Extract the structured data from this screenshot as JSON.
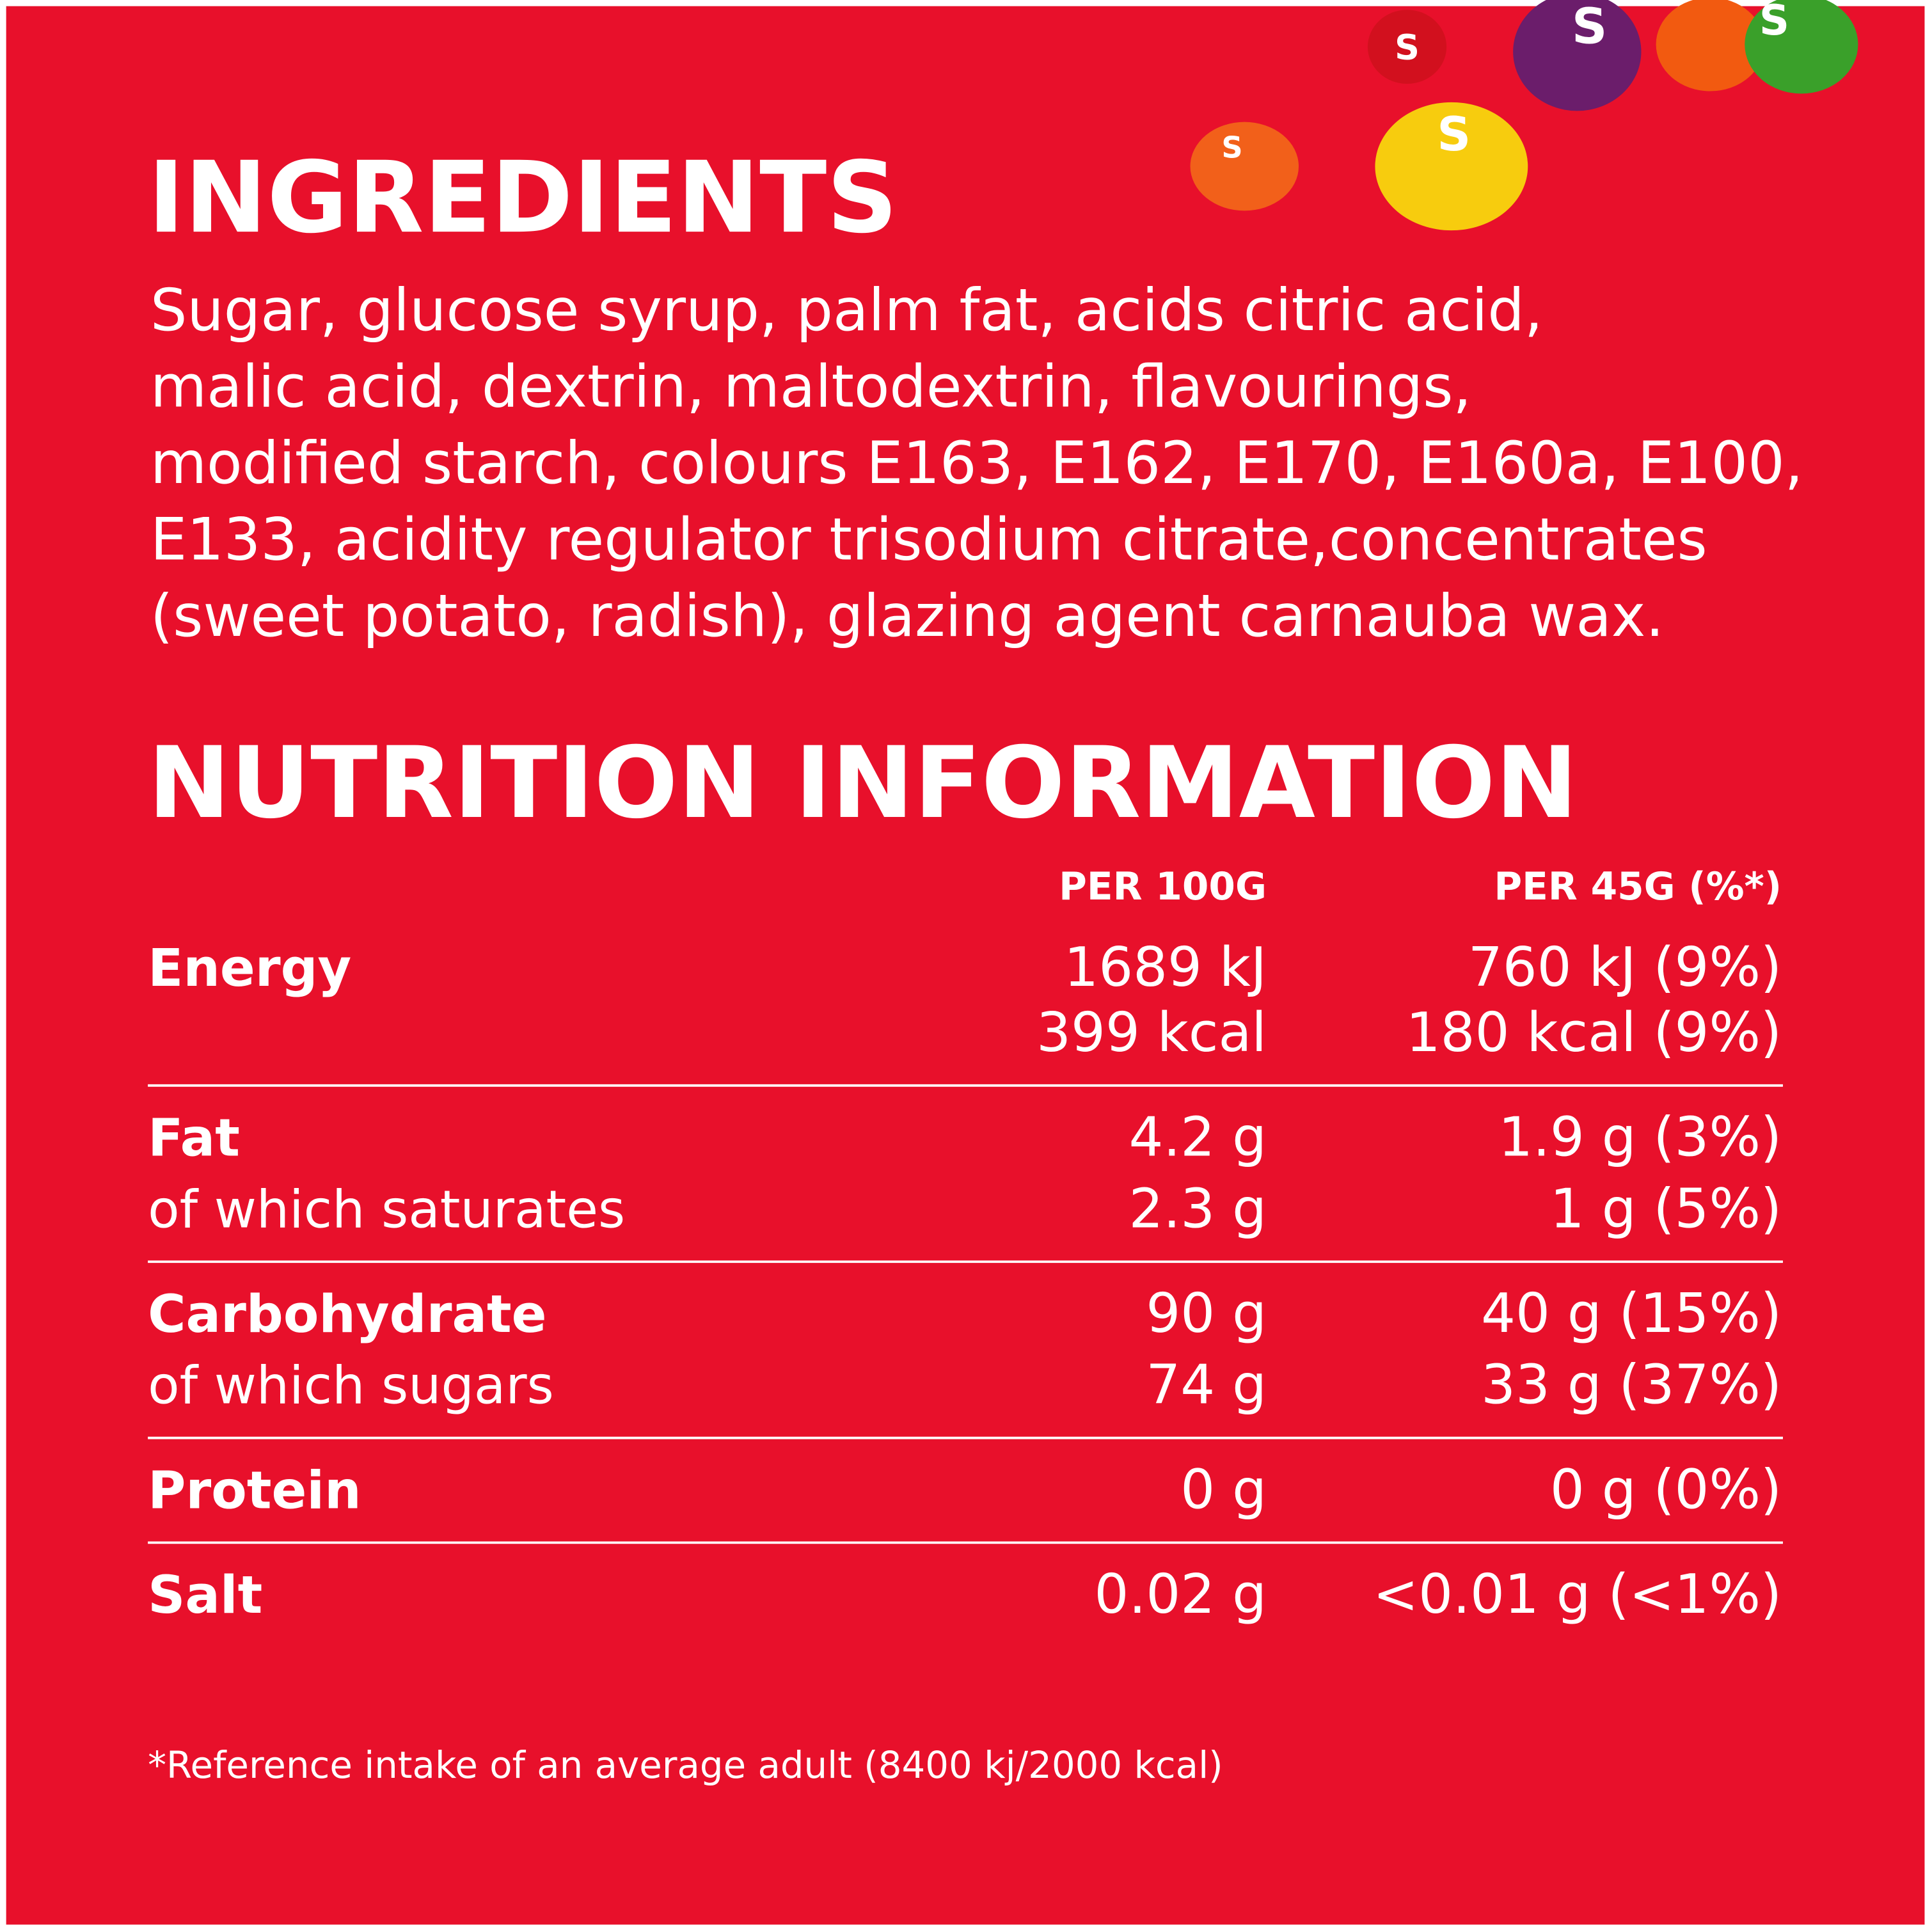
{
  "ingredients": {
    "title": "INGREDIENTS",
    "lines": [
      "Sugar, glucose syrup, palm fat, acids citric acid,",
      "malic acid, dextrin, maltodextrin, flavourings,",
      "modified starch, colours E163, E162, E170, E160a, E100,",
      "E133, acidity regulator trisodium citrate,concentrates",
      "(sweet potato, radish), glazing agent carnauba wax."
    ]
  },
  "nutrition": {
    "title": "NUTRITION INFORMATION",
    "columns": [
      "PER 100G",
      "PER 45G (%*)"
    ],
    "rows": [
      {
        "lines": [
          {
            "label": "Energy",
            "per_100g": "1689 kJ",
            "per_45g": "760 kJ (9%)"
          },
          {
            "per_100g": "399 kcal",
            "per_45g": "180 kcal (9%)"
          }
        ]
      },
      {
        "lines": [
          {
            "label": "Fat",
            "per_100g": "4.2 g",
            "per_45g": "1.9 g (3%)"
          },
          {
            "label": "of which saturates",
            "per_100g": "2.3 g",
            "per_45g": "1 g (5%)"
          }
        ]
      },
      {
        "lines": [
          {
            "label": "Carbohydrate",
            "per_100g": "90 g",
            "per_45g": "40 g (15%)"
          },
          {
            "label": "of which sugars",
            "per_100g": "74 g",
            "per_45g": "33 g (37%)"
          }
        ]
      },
      {
        "lines": [
          {
            "label": "Protein",
            "per_100g": "0 g",
            "per_45g": "0 g (0%)"
          }
        ]
      },
      {
        "lines": [
          {
            "label": "Salt",
            "per_100g": "0.02 g",
            "per_45g": "<0.01 g (<1%)"
          }
        ]
      }
    ],
    "footnote": "*Reference intake of an average adult (8400 kj/2000 kcal)"
  }
}
